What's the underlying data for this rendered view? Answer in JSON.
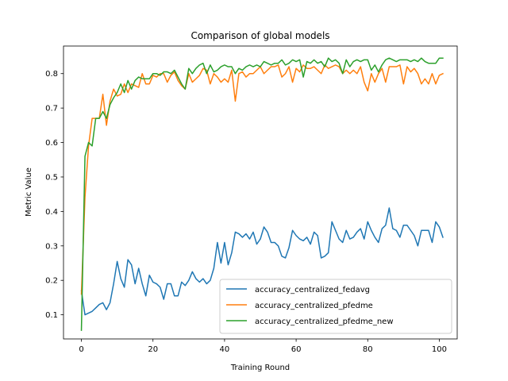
{
  "chart_data": {
    "type": "line",
    "title": "Comparison of global models",
    "xlabel": "Training Round",
    "ylabel": "Metric Value",
    "xlim": [
      -5,
      105
    ],
    "ylim": [
      0.03,
      0.88
    ],
    "xticks": [
      0,
      20,
      40,
      60,
      80,
      100
    ],
    "yticks": [
      0.1,
      0.2,
      0.3,
      0.4,
      0.5,
      0.6,
      0.7,
      0.8
    ],
    "legend_position": "lower-right",
    "grid": false,
    "series": [
      {
        "name": "accuracy_centralized_fedavg",
        "color": "#1f77b4",
        "values": [
          0.17,
          0.1,
          0.105,
          0.11,
          0.12,
          0.13,
          0.135,
          0.115,
          0.135,
          0.19,
          0.255,
          0.205,
          0.18,
          0.26,
          0.245,
          0.19,
          0.235,
          0.19,
          0.155,
          0.215,
          0.195,
          0.19,
          0.18,
          0.145,
          0.19,
          0.19,
          0.155,
          0.155,
          0.195,
          0.185,
          0.2,
          0.225,
          0.205,
          0.195,
          0.205,
          0.19,
          0.2,
          0.235,
          0.31,
          0.25,
          0.31,
          0.245,
          0.28,
          0.34,
          0.335,
          0.325,
          0.335,
          0.32,
          0.34,
          0.305,
          0.32,
          0.355,
          0.34,
          0.31,
          0.31,
          0.3,
          0.27,
          0.265,
          0.295,
          0.345,
          0.33,
          0.32,
          0.315,
          0.325,
          0.305,
          0.34,
          0.33,
          0.265,
          0.27,
          0.28,
          0.37,
          0.345,
          0.32,
          0.31,
          0.345,
          0.32,
          0.325,
          0.34,
          0.35,
          0.32,
          0.37,
          0.345,
          0.325,
          0.31,
          0.35,
          0.36,
          0.41,
          0.35,
          0.345,
          0.325,
          0.36,
          0.36,
          0.345,
          0.33,
          0.3,
          0.345,
          0.345,
          0.345,
          0.31,
          0.37,
          0.355,
          0.325
        ]
      },
      {
        "name": "accuracy_centralized_pfedme",
        "color": "#ff7f0e",
        "values": [
          0.16,
          0.44,
          0.59,
          0.67,
          0.67,
          0.67,
          0.74,
          0.65,
          0.72,
          0.755,
          0.735,
          0.74,
          0.77,
          0.745,
          0.77,
          0.765,
          0.76,
          0.8,
          0.77,
          0.77,
          0.795,
          0.79,
          0.8,
          0.8,
          0.775,
          0.795,
          0.805,
          0.78,
          0.765,
          0.755,
          0.8,
          0.775,
          0.785,
          0.795,
          0.815,
          0.81,
          0.77,
          0.8,
          0.79,
          0.775,
          0.785,
          0.775,
          0.81,
          0.72,
          0.8,
          0.805,
          0.79,
          0.8,
          0.8,
          0.81,
          0.82,
          0.8,
          0.81,
          0.82,
          0.82,
          0.825,
          0.79,
          0.8,
          0.82,
          0.775,
          0.815,
          0.805,
          0.825,
          0.815,
          0.815,
          0.82,
          0.81,
          0.8,
          0.825,
          0.815,
          0.82,
          0.825,
          0.82,
          0.8,
          0.81,
          0.8,
          0.81,
          0.8,
          0.82,
          0.775,
          0.75,
          0.8,
          0.775,
          0.8,
          0.815,
          0.775,
          0.82,
          0.82,
          0.82,
          0.825,
          0.77,
          0.82,
          0.805,
          0.815,
          0.8,
          0.77,
          0.785,
          0.77,
          0.8,
          0.77,
          0.795,
          0.8
        ]
      },
      {
        "name": "accuracy_centralized_pfedme_new",
        "color": "#2ca02c",
        "values": [
          0.055,
          0.56,
          0.6,
          0.59,
          0.67,
          0.67,
          0.69,
          0.67,
          0.71,
          0.73,
          0.745,
          0.77,
          0.745,
          0.78,
          0.755,
          0.78,
          0.79,
          0.785,
          0.785,
          0.785,
          0.8,
          0.8,
          0.795,
          0.805,
          0.805,
          0.8,
          0.81,
          0.79,
          0.77,
          0.755,
          0.815,
          0.8,
          0.815,
          0.825,
          0.83,
          0.8,
          0.825,
          0.805,
          0.81,
          0.82,
          0.825,
          0.82,
          0.82,
          0.8,
          0.815,
          0.81,
          0.82,
          0.825,
          0.82,
          0.825,
          0.82,
          0.835,
          0.83,
          0.825,
          0.83,
          0.83,
          0.84,
          0.825,
          0.83,
          0.84,
          0.835,
          0.84,
          0.79,
          0.835,
          0.83,
          0.84,
          0.83,
          0.835,
          0.82,
          0.845,
          0.835,
          0.84,
          0.83,
          0.8,
          0.84,
          0.82,
          0.835,
          0.84,
          0.835,
          0.84,
          0.84,
          0.81,
          0.825,
          0.805,
          0.825,
          0.84,
          0.845,
          0.84,
          0.835,
          0.84,
          0.84,
          0.84,
          0.835,
          0.84,
          0.835,
          0.845,
          0.835,
          0.83,
          0.83,
          0.83,
          0.845,
          0.845
        ]
      }
    ]
  }
}
